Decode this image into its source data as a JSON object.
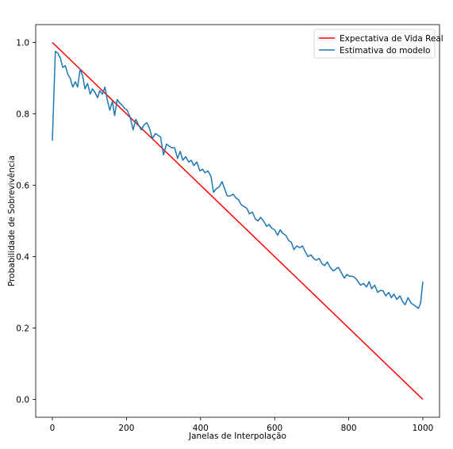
{
  "chart_data": {
    "type": "line",
    "xlabel": "Janelas de Interpolação",
    "ylabel": "Probabilidade de Sobrevivência",
    "xlim": [
      -45,
      1045
    ],
    "ylim": [
      -0.05,
      1.05
    ],
    "xticks": [
      0,
      200,
      400,
      600,
      800,
      1000
    ],
    "yticks": [
      0.0,
      0.2,
      0.4,
      0.6,
      0.8,
      1.0
    ],
    "grid": false,
    "legend": "top-right",
    "series": [
      {
        "name": "Expectativa de Vida Real",
        "color": "#ff0000",
        "x": [
          0,
          1000
        ],
        "y": [
          1.0,
          0.0
        ]
      },
      {
        "name": "Estimativa do modelo",
        "color": "#1f77b4",
        "x": [
          0,
          8,
          15,
          22,
          28,
          35,
          42,
          48,
          55,
          62,
          68,
          75,
          82,
          88,
          95,
          102,
          108,
          115,
          122,
          128,
          135,
          142,
          148,
          155,
          162,
          168,
          175,
          182,
          188,
          195,
          202,
          210,
          218,
          225,
          232,
          240,
          248,
          255,
          262,
          270,
          278,
          285,
          292,
          300,
          308,
          315,
          322,
          330,
          338,
          345,
          352,
          360,
          368,
          375,
          382,
          390,
          398,
          405,
          412,
          420,
          428,
          435,
          442,
          450,
          458,
          465,
          472,
          480,
          488,
          495,
          502,
          510,
          518,
          525,
          532,
          540,
          548,
          555,
          562,
          570,
          578,
          585,
          592,
          600,
          608,
          615,
          622,
          630,
          638,
          645,
          652,
          660,
          668,
          675,
          682,
          690,
          698,
          705,
          712,
          720,
          728,
          735,
          742,
          750,
          758,
          765,
          772,
          780,
          788,
          795,
          802,
          810,
          818,
          825,
          832,
          840,
          848,
          855,
          862,
          870,
          878,
          885,
          892,
          900,
          908,
          915,
          922,
          930,
          938,
          945,
          952,
          960,
          968,
          975,
          982,
          988,
          994,
          1000
        ],
        "y": [
          0.725,
          0.975,
          0.97,
          0.955,
          0.93,
          0.935,
          0.91,
          0.9,
          0.875,
          0.89,
          0.875,
          0.925,
          0.905,
          0.87,
          0.885,
          0.855,
          0.87,
          0.86,
          0.845,
          0.865,
          0.855,
          0.875,
          0.84,
          0.81,
          0.835,
          0.795,
          0.84,
          0.83,
          0.825,
          0.815,
          0.81,
          0.79,
          0.755,
          0.785,
          0.77,
          0.755,
          0.77,
          0.775,
          0.76,
          0.73,
          0.745,
          0.74,
          0.735,
          0.685,
          0.715,
          0.71,
          0.705,
          0.705,
          0.675,
          0.695,
          0.67,
          0.68,
          0.665,
          0.67,
          0.655,
          0.665,
          0.64,
          0.645,
          0.635,
          0.64,
          0.625,
          0.58,
          0.59,
          0.595,
          0.61,
          0.59,
          0.57,
          0.57,
          0.575,
          0.565,
          0.56,
          0.545,
          0.54,
          0.535,
          0.52,
          0.525,
          0.505,
          0.5,
          0.51,
          0.5,
          0.485,
          0.49,
          0.48,
          0.475,
          0.46,
          0.475,
          0.465,
          0.46,
          0.445,
          0.44,
          0.42,
          0.43,
          0.425,
          0.43,
          0.415,
          0.4,
          0.405,
          0.395,
          0.39,
          0.395,
          0.38,
          0.375,
          0.385,
          0.37,
          0.36,
          0.365,
          0.37,
          0.355,
          0.34,
          0.35,
          0.345,
          0.345,
          0.34,
          0.33,
          0.32,
          0.325,
          0.315,
          0.33,
          0.31,
          0.32,
          0.3,
          0.305,
          0.305,
          0.29,
          0.3,
          0.285,
          0.295,
          0.28,
          0.29,
          0.275,
          0.265,
          0.285,
          0.27,
          0.265,
          0.26,
          0.255,
          0.27,
          0.33
        ]
      }
    ]
  }
}
